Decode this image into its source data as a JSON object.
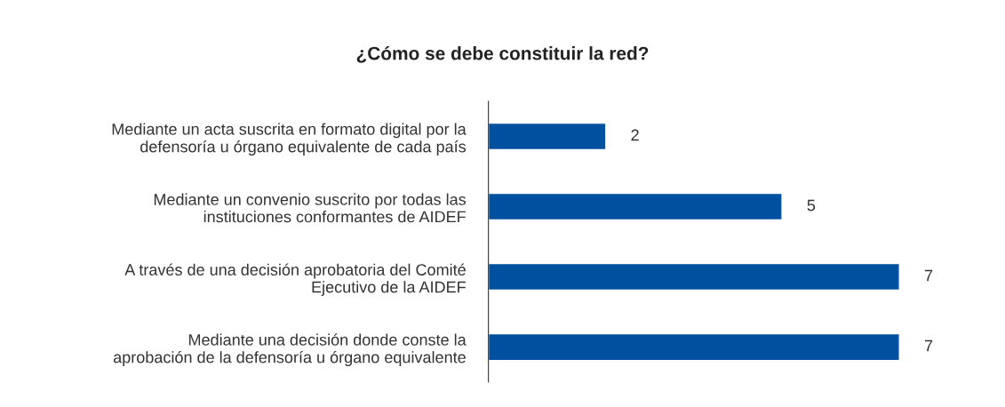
{
  "chart_data": {
    "type": "bar",
    "orientation": "horizontal",
    "title": "¿Cómo se debe constituir la red?",
    "categories": [
      "Mediante un acta suscrita en formato digital por la\ndefensoría u órgano equivalente de cada país",
      "Mediante un convenio suscrito por todas las\ninstituciones conformantes de AIDEF",
      "A través de una decisión aprobatoria del Comité\nEjecutivo de la AIDEF",
      "Mediante una decisión donde conste la\naprobación de la defensoría u órgano equivalente"
    ],
    "values": [
      2,
      5,
      7,
      7
    ],
    "color": "#0050a0",
    "data_labels": true,
    "grid": false,
    "legend": false
  }
}
